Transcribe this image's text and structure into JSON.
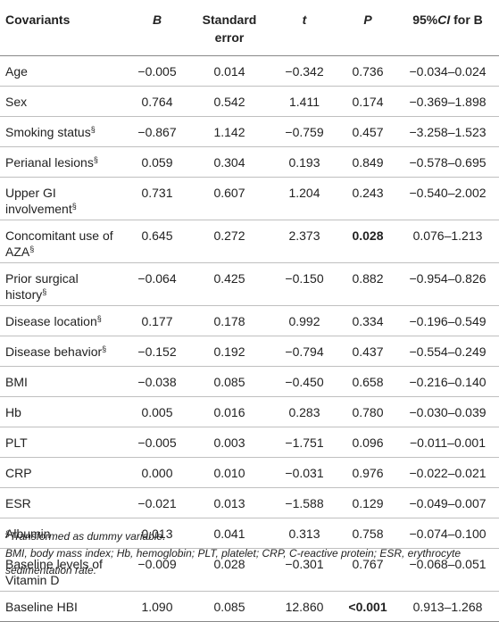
{
  "header": {
    "covariants": "Covariants",
    "b": "B",
    "standard_error": "Standard error",
    "t": "t",
    "p": "P",
    "ci_prefix": "95%",
    "ci_italic": "CI",
    "ci_suffix": " for B"
  },
  "sup_symbol": "§",
  "rows": [
    {
      "name": "Age",
      "sup": "",
      "b": "−0.005",
      "se": "0.014",
      "t": "−0.342",
      "p": "0.736",
      "p_bold": false,
      "ci": "−0.034–0.024"
    },
    {
      "name": "Sex",
      "sup": "",
      "b": "0.764",
      "se": "0.542",
      "t": "1.411",
      "p": "0.174",
      "p_bold": false,
      "ci": "−0.369–1.898"
    },
    {
      "name": "Smoking status",
      "sup": "§",
      "b": "−0.867",
      "se": "1.142",
      "t": "−0.759",
      "p": "0.457",
      "p_bold": false,
      "ci": "−3.258–1.523"
    },
    {
      "name": "Perianal lesions",
      "sup": "§",
      "b": "0.059",
      "se": "0.304",
      "t": "0.193",
      "p": "0.849",
      "p_bold": false,
      "ci": "−0.578–0.695"
    },
    {
      "name": "Upper GI involvement",
      "sup": "§",
      "b": "0.731",
      "se": "0.607",
      "t": "1.204",
      "p": "0.243",
      "p_bold": false,
      "ci": "−0.540–2.002"
    },
    {
      "name": "Concomitant use of AZA",
      "sup": "§",
      "b": "0.645",
      "se": "0.272",
      "t": "2.373",
      "p": "0.028",
      "p_bold": true,
      "ci": "0.076–1.213"
    },
    {
      "name": "Prior surgical history",
      "sup": "§",
      "b": "−0.064",
      "se": "0.425",
      "t": "−0.150",
      "p": "0.882",
      "p_bold": false,
      "ci": "−0.954–0.826"
    },
    {
      "name": "Disease location",
      "sup": "§",
      "b": "0.177",
      "se": "0.178",
      "t": "0.992",
      "p": "0.334",
      "p_bold": false,
      "ci": "−0.196–0.549"
    },
    {
      "name": "Disease behavior",
      "sup": "§",
      "b": "−0.152",
      "se": "0.192",
      "t": "−0.794",
      "p": "0.437",
      "p_bold": false,
      "ci": "−0.554–0.249"
    },
    {
      "name": "BMI",
      "sup": "",
      "b": "−0.038",
      "se": "0.085",
      "t": "−0.450",
      "p": "0.658",
      "p_bold": false,
      "ci": "−0.216–0.140"
    },
    {
      "name": "Hb",
      "sup": "",
      "b": "0.005",
      "se": "0.016",
      "t": "0.283",
      "p": "0.780",
      "p_bold": false,
      "ci": "−0.030–0.039"
    },
    {
      "name": "PLT",
      "sup": "",
      "b": "−0.005",
      "se": "0.003",
      "t": "−1.751",
      "p": "0.096",
      "p_bold": false,
      "ci": "−0.011–0.001"
    },
    {
      "name": "CRP",
      "sup": "",
      "b": "0.000",
      "se": "0.010",
      "t": "−0.031",
      "p": "0.976",
      "p_bold": false,
      "ci": "−0.022–0.021"
    },
    {
      "name": "ESR",
      "sup": "",
      "b": "−0.021",
      "se": "0.013",
      "t": "−1.588",
      "p": "0.129",
      "p_bold": false,
      "ci": "−0.049–0.007"
    },
    {
      "name": "Albumin",
      "sup": "",
      "b": "0.013",
      "se": "0.041",
      "t": "0.313",
      "p": "0.758",
      "p_bold": false,
      "ci": "−0.074–0.100"
    },
    {
      "name": "Baseline levels of Vitamin D",
      "sup": "",
      "b": "−0.009",
      "se": "0.028",
      "t": "−0.301",
      "p": "0.767",
      "p_bold": false,
      "ci": "−0.068–0.051"
    },
    {
      "name": "Baseline HBI",
      "sup": "",
      "b": "1.090",
      "se": "0.085",
      "t": "12.860",
      "p": "<0.001",
      "p_bold": true,
      "ci": "0.913–1.268"
    }
  ],
  "notes": {
    "footnote_symbol": "§",
    "footnote_text": "Transformed as dummy variable.",
    "abbreviations": "BMI, body mass index; Hb, hemoglobin; PLT, platelet; CRP, C-reactive protein; ESR, erythrocyte sedimentation rate."
  }
}
